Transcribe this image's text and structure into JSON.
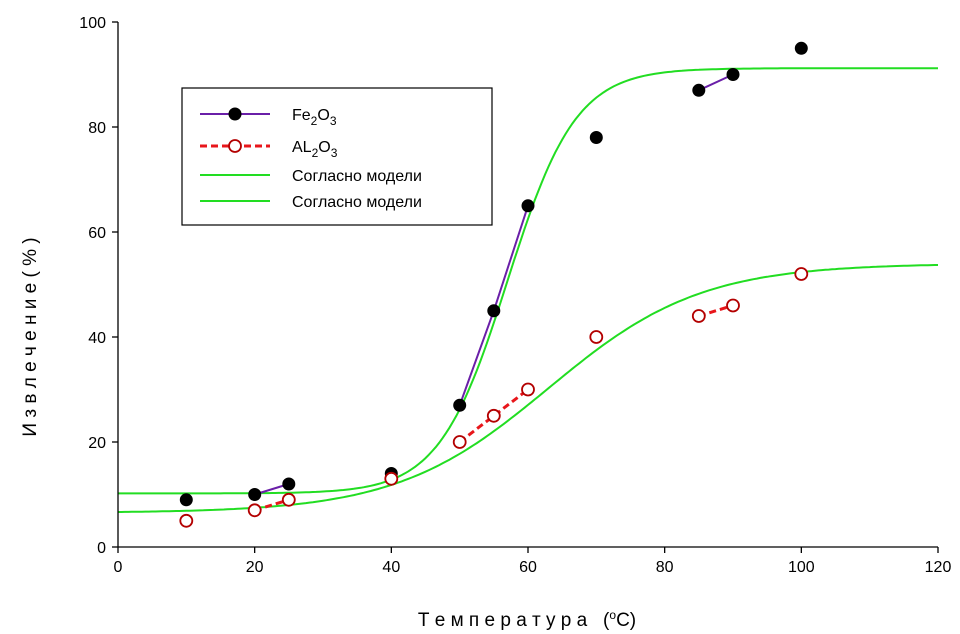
{
  "chart_data": {
    "type": "scatter",
    "xlabel": "Т е м п е р а т у р а   (",
    "xlabel_sup": "o",
    "xlabel_unit": "C)",
    "ylabel": "И з в л е ч е н и е   ( % )",
    "xlim": [
      0,
      120
    ],
    "ylim": [
      0,
      100
    ],
    "x_ticks": [
      "0",
      "20",
      "40",
      "60",
      "80",
      "100",
      "120"
    ],
    "y_ticks": [
      "0",
      "20",
      "40",
      "60",
      "80",
      "100"
    ],
    "grid": false,
    "legend_position": "top-left",
    "series": [
      {
        "name": "Fe2O3",
        "legend_parts": [
          "Fe",
          "2",
          "O",
          "3"
        ],
        "marker": "filled-circle",
        "color": "#6a1fa8",
        "marker_color": "#000000",
        "points": [
          {
            "x": 10,
            "y": 9
          },
          {
            "x": 20,
            "y": 10
          },
          {
            "x": 25,
            "y": 12
          },
          {
            "x": 40,
            "y": 14
          },
          {
            "x": 50,
            "y": 27
          },
          {
            "x": 55,
            "y": 45
          },
          {
            "x": 60,
            "y": 65
          },
          {
            "x": 70,
            "y": 78
          },
          {
            "x": 85,
            "y": 87
          },
          {
            "x": 90,
            "y": 90
          },
          {
            "x": 100,
            "y": 95
          }
        ],
        "line_segments": [
          [
            1,
            2
          ],
          [
            4,
            6
          ],
          [
            8,
            9
          ]
        ]
      },
      {
        "name": "AL2O3",
        "legend_parts": [
          "AL",
          "2",
          "O",
          "3"
        ],
        "marker": "open-circle",
        "color": "#e8161b",
        "marker_color": "#b30000",
        "points": [
          {
            "x": 10,
            "y": 5
          },
          {
            "x": 20,
            "y": 7
          },
          {
            "x": 25,
            "y": 9
          },
          {
            "x": 40,
            "y": 13
          },
          {
            "x": 50,
            "y": 20
          },
          {
            "x": 55,
            "y": 25
          },
          {
            "x": 60,
            "y": 30
          },
          {
            "x": 70,
            "y": 40
          },
          {
            "x": 85,
            "y": 44
          },
          {
            "x": 90,
            "y": 46
          },
          {
            "x": 100,
            "y": 52
          }
        ],
        "line_segments": [
          [
            1,
            2
          ],
          [
            4,
            6
          ],
          [
            8,
            9
          ]
        ]
      },
      {
        "name": "Согласно модели",
        "type": "curve",
        "color": "#22dd22",
        "model": {
          "kind": "logistic",
          "y0": 10.2,
          "amplitude": 81,
          "x0": 57,
          "k": 0.2
        }
      },
      {
        "name": "Согласно модели",
        "type": "curve",
        "color": "#22dd22",
        "model": {
          "kind": "logistic",
          "y0": 6.5,
          "amplitude": 47.5,
          "x0": 63,
          "k": 0.09
        }
      }
    ]
  }
}
